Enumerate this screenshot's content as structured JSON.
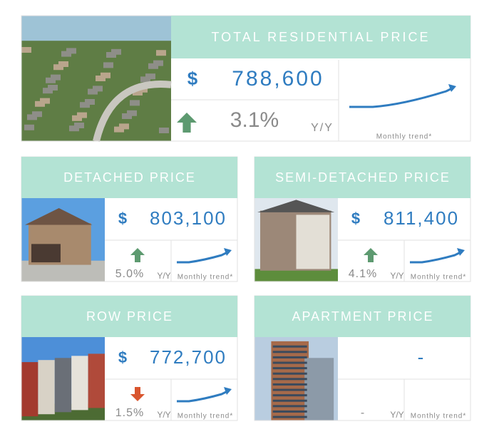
{
  "cards": [
    {
      "title": "TOTAL RESIDENTIAL PRICE",
      "currency": "$",
      "price": "788,600",
      "change": "3.1%",
      "direction": "up",
      "period": "Y/Y",
      "trend_label": "Monthly trend*"
    },
    {
      "title": "DETACHED PRICE",
      "currency": "$",
      "price": "803,100",
      "change": "5.0%",
      "direction": "up",
      "period": "Y/Y",
      "trend_label": "Monthly trend*"
    },
    {
      "title": "SEMI-DETACHED PRICE",
      "currency": "$",
      "price": "811,400",
      "change": "4.1%",
      "direction": "up",
      "period": "Y/Y",
      "trend_label": "Monthly trend*"
    },
    {
      "title": "ROW PRICE",
      "currency": "$",
      "price": "772,700",
      "change": "1.5%",
      "direction": "down",
      "period": "Y/Y",
      "trend_label": "Monthly trend*"
    },
    {
      "title": "APARTMENT PRICE",
      "price": "-",
      "change": "-",
      "period": "Y/Y",
      "trend_label": "Monthly trend*"
    }
  ]
}
